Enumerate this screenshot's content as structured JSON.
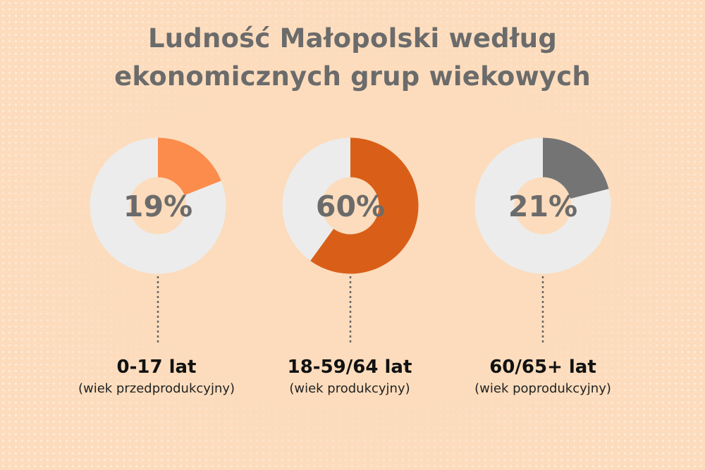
{
  "title_lines": [
    "Ludność Małopolski według",
    "ekonomicznych grup wiekowych"
  ],
  "chart_data": {
    "type": "pie",
    "title": "Ludność Małopolski według ekonomicznych grup wiekowych",
    "unit": "%",
    "series": [
      {
        "name": "0-17 lat",
        "sublabel": "(wiek przedprodukcyjny)",
        "value": 19,
        "label": "19%",
        "color": "#fb8c4c"
      },
      {
        "name": "18-59/64 lat",
        "sublabel": "(wiek produkcyjny)",
        "value": 60,
        "label": "60%",
        "color": "#d95f18"
      },
      {
        "name": "60/65+ lat",
        "sublabel": "(wiek poprodukcyjny)",
        "value": 21,
        "label": "21%",
        "color": "#747474"
      }
    ]
  },
  "colors": {
    "background": "#fcdcbc",
    "track": "#ececec",
    "title": "#6b6b6b",
    "label": "#6b6b6b",
    "connector": "#666666"
  }
}
